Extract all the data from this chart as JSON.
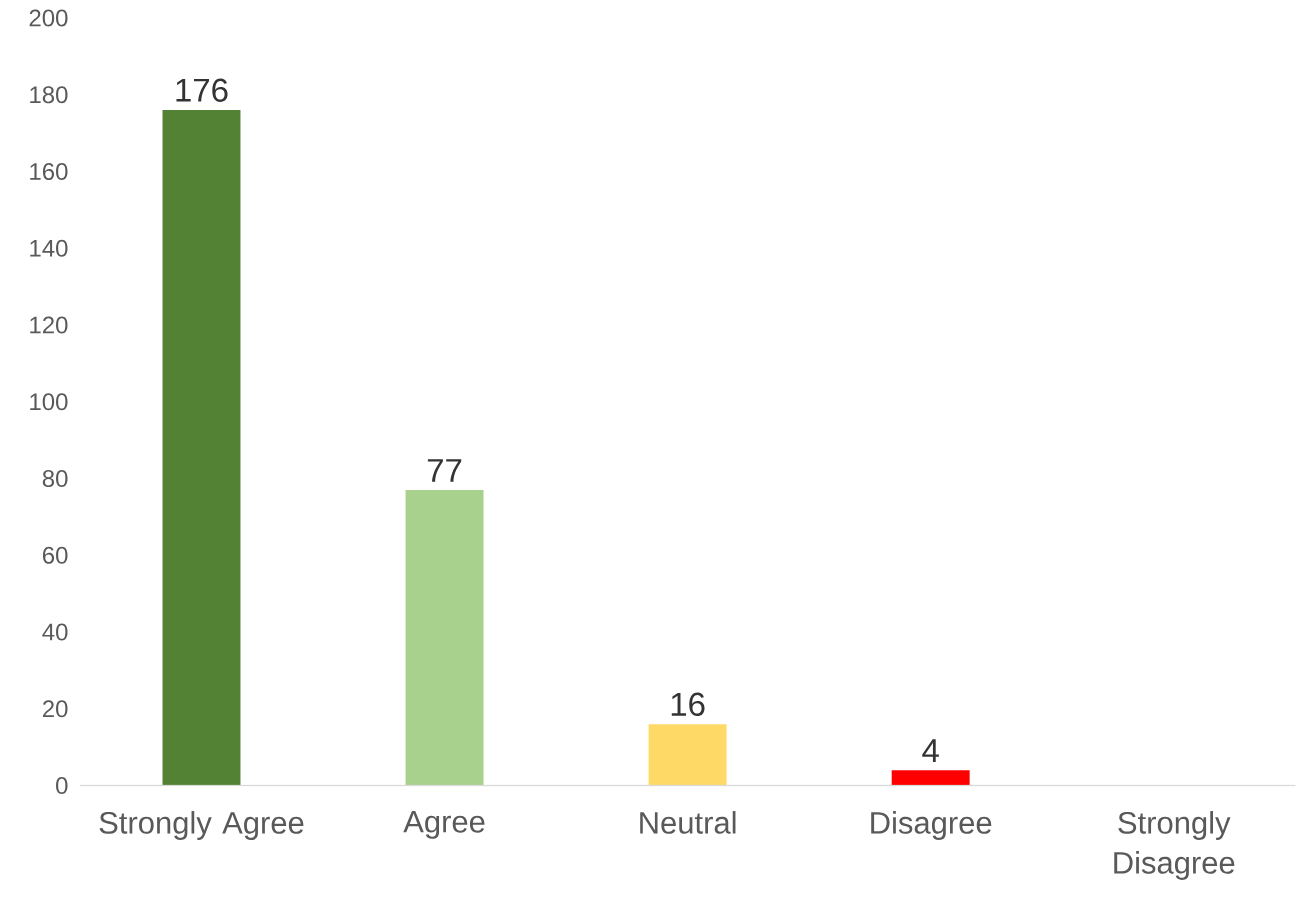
{
  "chart_data": {
    "type": "bar",
    "categories": [
      "Strongly Agree",
      "Agree",
      "Neutral",
      "Disagree",
      "Strongly Disagree"
    ],
    "values": [
      176,
      77,
      16,
      4,
      0
    ],
    "colors": [
      "#548235",
      "#a9d18e",
      "#ffd966",
      "#ff0000",
      "#c00000"
    ],
    "value_labels": [
      "176",
      "77",
      "16",
      "4",
      null
    ],
    "ylim": [
      0,
      200
    ],
    "yticks": [
      0,
      20,
      40,
      60,
      80,
      100,
      120,
      140,
      160,
      180,
      200
    ]
  }
}
